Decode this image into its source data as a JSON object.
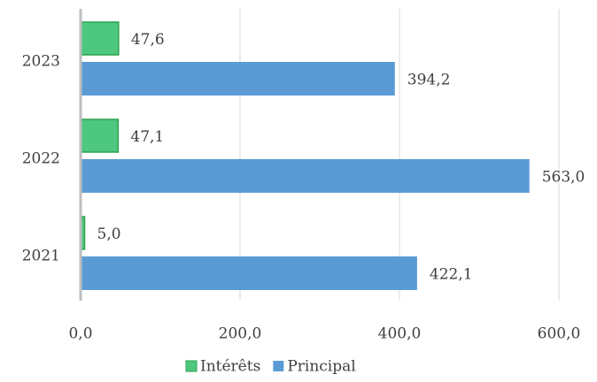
{
  "chart_data": {
    "type": "hbar",
    "categories": [
      "2023",
      "2022",
      "2021"
    ],
    "series": [
      {
        "name": "Intérêts",
        "color": "#4ec77f",
        "values": [
          47.6,
          47.1,
          5.0
        ],
        "value_labels": [
          "47,6",
          "47,1",
          "5,0"
        ]
      },
      {
        "name": "Principal",
        "color": "#5b9bd5",
        "values": [
          394.2,
          563.0,
          422.1
        ],
        "value_labels": [
          "394,2",
          "563,0",
          "422,1"
        ]
      }
    ],
    "xlim": [
      0,
      600
    ],
    "xticks": [
      {
        "value": 0,
        "label": "0,0"
      },
      {
        "value": 200,
        "label": "200,0"
      },
      {
        "value": 400,
        "label": "400,0"
      },
      {
        "value": 600,
        "label": "600,0"
      }
    ],
    "grid": true
  }
}
